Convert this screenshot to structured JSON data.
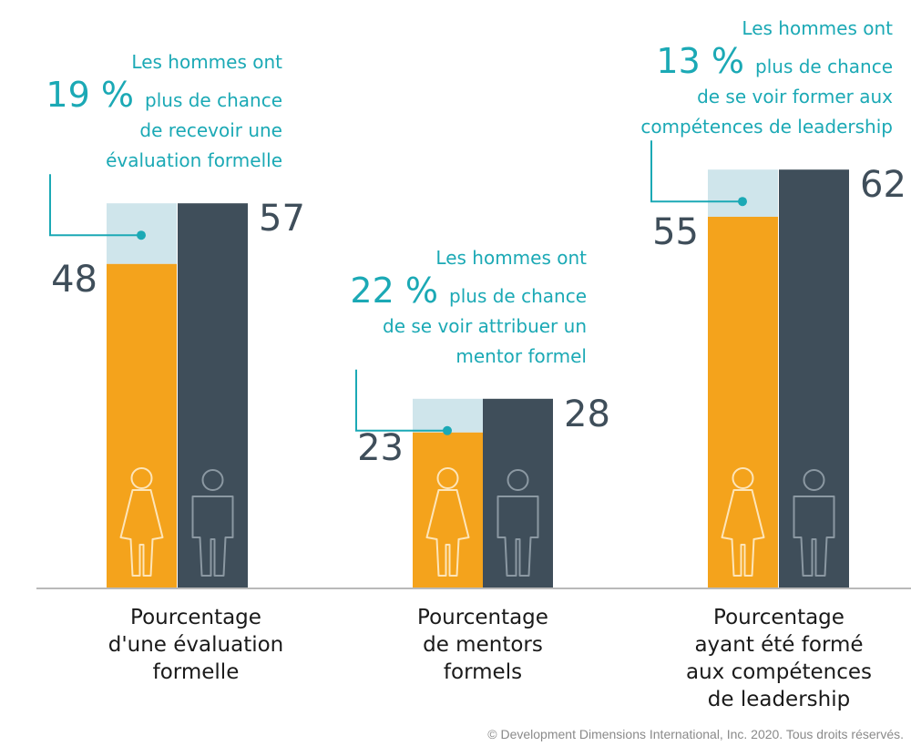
{
  "colors": {
    "women": "#f4a31c",
    "men": "#3f4e5a",
    "gap": "#cfe5eb",
    "accent": "#1ba9b5",
    "axis": "#b9b9b9"
  },
  "chart_data": {
    "type": "bar",
    "series": [
      {
        "icon": "woman-outline-icon",
        "values": [
          48,
          23,
          55
        ]
      },
      {
        "icon": "man-outline-icon",
        "values": [
          57,
          28,
          62
        ]
      }
    ],
    "categories": [
      [
        "Pourcentage",
        "d'une évaluation",
        "formelle"
      ],
      [
        "Pourcentage",
        "de mentors",
        "formels"
      ],
      [
        "Pourcentage",
        "ayant été formé",
        "aux compétences",
        "de leadership"
      ]
    ],
    "annotations": [
      {
        "line1": "Les hommes ont",
        "pct": "19 %",
        "line2": "plus de chance",
        "rest": [
          "de recevoir une",
          "évaluation formelle"
        ]
      },
      {
        "line1": "Les hommes ont",
        "pct": "22 %",
        "line2": "plus de chance",
        "rest": [
          "de se voir attribuer un",
          "mentor formel"
        ]
      },
      {
        "line1": "Les hommes ont",
        "pct": "13 %",
        "line2": "plus de chance",
        "rest": [
          "de se voir former aux",
          "compétences de leadership"
        ]
      }
    ],
    "footer": "© Development Dimensions International, Inc. 2020. Tous droits réservés."
  }
}
